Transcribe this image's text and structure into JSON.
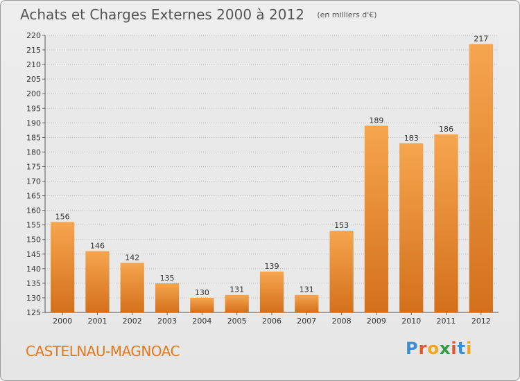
{
  "header": {
    "title": "Achats et Charges Externes 2000 à 2012",
    "unit": "(en milliers d'€)"
  },
  "footer": {
    "commune": "CASTELNAU-MAGNOAC",
    "brand": [
      "P",
      "r",
      "o",
      "x",
      "i",
      "t",
      "i"
    ],
    "brand_colors": [
      "#3b8ed0",
      "#e2572b",
      "#f0a81a",
      "#2e9d43",
      "#e2572b",
      "#3b8ed0",
      "#f0a81a"
    ]
  },
  "chart_data": {
    "type": "bar",
    "title": "Achats et Charges Externes 2000 à 2012",
    "subtitle": "(en milliers d'€)",
    "categories": [
      "2000",
      "2001",
      "2002",
      "2003",
      "2004",
      "2005",
      "2006",
      "2007",
      "2008",
      "2009",
      "2010",
      "2011",
      "2012"
    ],
    "values": [
      156,
      146,
      142,
      135,
      130,
      131,
      139,
      131,
      153,
      189,
      183,
      186,
      217
    ],
    "ylim": [
      125,
      220
    ],
    "yticks": [
      125,
      130,
      135,
      140,
      145,
      150,
      155,
      160,
      165,
      170,
      175,
      180,
      185,
      190,
      195,
      200,
      205,
      210,
      215,
      220
    ],
    "grid": true,
    "bar_color_top": "#f6a54f",
    "bar_color_bottom": "#d4701b",
    "grid_color": "#bbbbbb"
  }
}
